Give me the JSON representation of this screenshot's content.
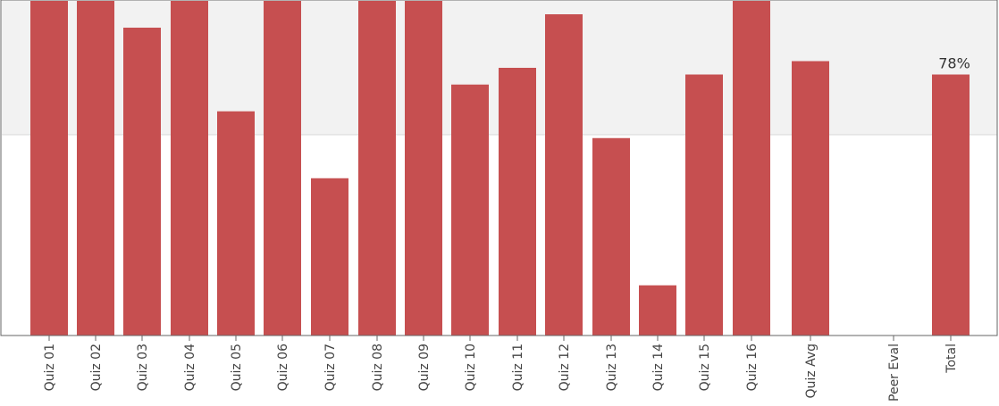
{
  "chart_data": {
    "type": "bar",
    "categories": [
      "Quiz 01",
      "Quiz 02",
      "Quiz 03",
      "Quiz 04",
      "Quiz 05",
      "Quiz 06",
      "Quiz 07",
      "Quiz 08",
      "Quiz 09",
      "Quiz 10",
      "Quiz 11",
      "Quiz 12",
      "Quiz 13",
      "Quiz 14",
      "Quiz 15",
      "Quiz 16",
      "Quiz Avg",
      "Peer Eval",
      "Total"
    ],
    "values": [
      100,
      100,
      92,
      100,
      67,
      100,
      47,
      100,
      100,
      75,
      80,
      96,
      59,
      15,
      78,
      100,
      82,
      0,
      78
    ],
    "ylim": [
      0,
      100
    ],
    "shaded_band": [
      60,
      100
    ],
    "bar_color": "#c54b4c",
    "band_color": "#f2f2f2",
    "annotations": [
      {
        "category": "Total",
        "text": "78%"
      }
    ],
    "grid": false,
    "legend": "none"
  }
}
